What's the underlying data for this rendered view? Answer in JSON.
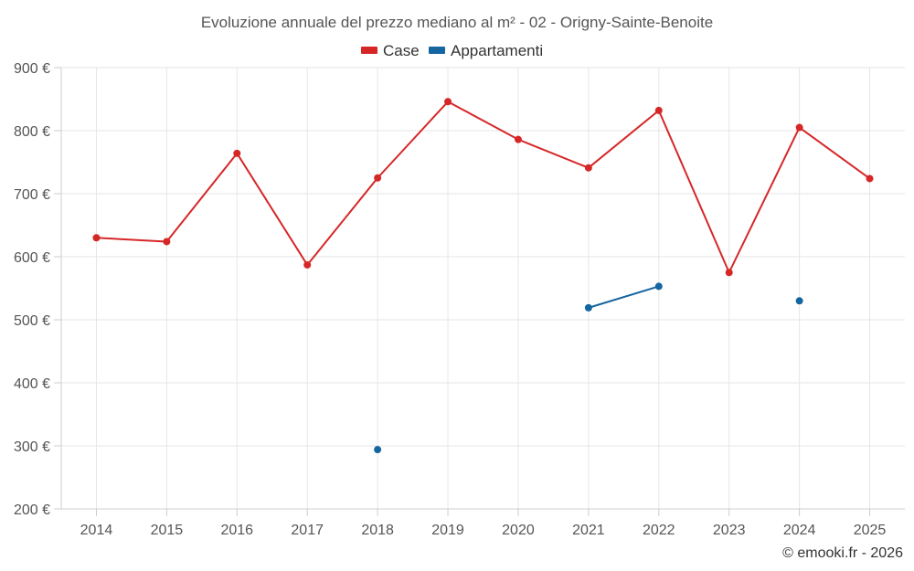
{
  "chart_data": {
    "type": "line",
    "title": "Evoluzione annuale del prezzo mediano al m² - 02 - Origny-Sainte-Benoite",
    "categories": [
      "2014",
      "2015",
      "2016",
      "2017",
      "2018",
      "2019",
      "2020",
      "2021",
      "2022",
      "2023",
      "2024",
      "2025"
    ],
    "series": [
      {
        "name": "Case",
        "color": "#d62728",
        "values": [
          630,
          624,
          764,
          587,
          725,
          846,
          786,
          741,
          832,
          575,
          805,
          724
        ]
      },
      {
        "name": "Appartamenti",
        "color": "#1565a0",
        "values": [
          null,
          null,
          null,
          null,
          294,
          null,
          null,
          519,
          553,
          null,
          530,
          null
        ]
      }
    ],
    "yticks": [
      200,
      300,
      400,
      500,
      600,
      700,
      800,
      900
    ],
    "ytick_labels": [
      "200 €",
      "300 €",
      "400 €",
      "500 €",
      "600 €",
      "700 €",
      "800 €",
      "900 €"
    ],
    "ylim": [
      200,
      900
    ],
    "xlabel": "",
    "ylabel": "",
    "grid": true,
    "legend_position": "top-center"
  },
  "credit": "© emooki.fr - 2026"
}
